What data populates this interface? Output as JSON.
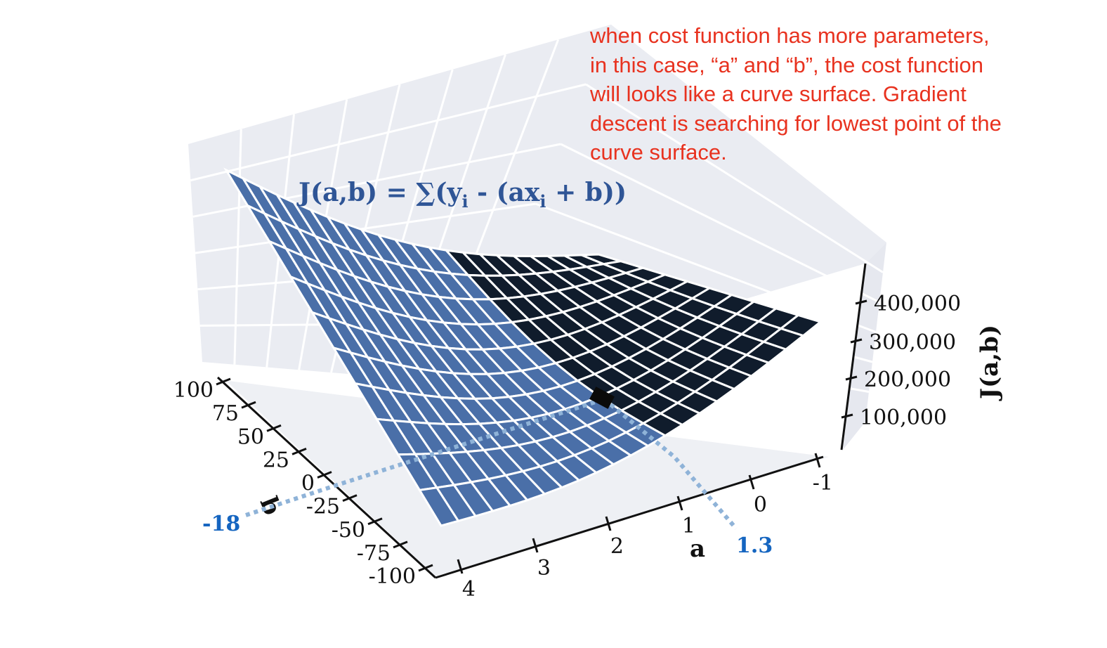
{
  "annotation": {
    "lines": [
      "when cost function has more parameters,",
      "in this case, “a” and “b”, the cost function",
      "will looks like a curve surface. Gradient",
      "descent is searching for lowest point of the",
      "curve surface."
    ]
  },
  "chart_data": {
    "type": "surface",
    "formula": {
      "lhs": "J(a,b)",
      "op": " = ",
      "sum": "∑(",
      "y": "y",
      "y_sub": "i",
      "mid": " - (",
      "ax": "ax",
      "x_sub": "i",
      "plus_b": " + b))"
    },
    "x_axis": {
      "label": "a",
      "ticks": [
        "4",
        "3",
        "2",
        "1",
        "0",
        "-1"
      ],
      "range": [
        4.5,
        -1.5
      ]
    },
    "y_axis": {
      "label": "b",
      "ticks": [
        "100",
        "75",
        "50",
        "25",
        "0",
        "-25",
        "-50",
        "-75",
        "-100"
      ],
      "range": [
        100,
        -100
      ]
    },
    "z_axis": {
      "label": "J(a,b)",
      "ticks": [
        "100,000",
        "200,000",
        "300,000",
        "400,000"
      ]
    },
    "minimum": {
      "a": 1.3,
      "b": -18,
      "a_label": "1.3",
      "b_label": "-18"
    },
    "colors": {
      "surface_light": "#4a6fa8",
      "surface_dark": "#101c2c",
      "pane": "#eaecf2",
      "grid": "#ffffff",
      "marker": "#1565c0",
      "guide": "#8fb3d8",
      "annotation": "#e8321f",
      "formula": "#2f5596"
    }
  }
}
